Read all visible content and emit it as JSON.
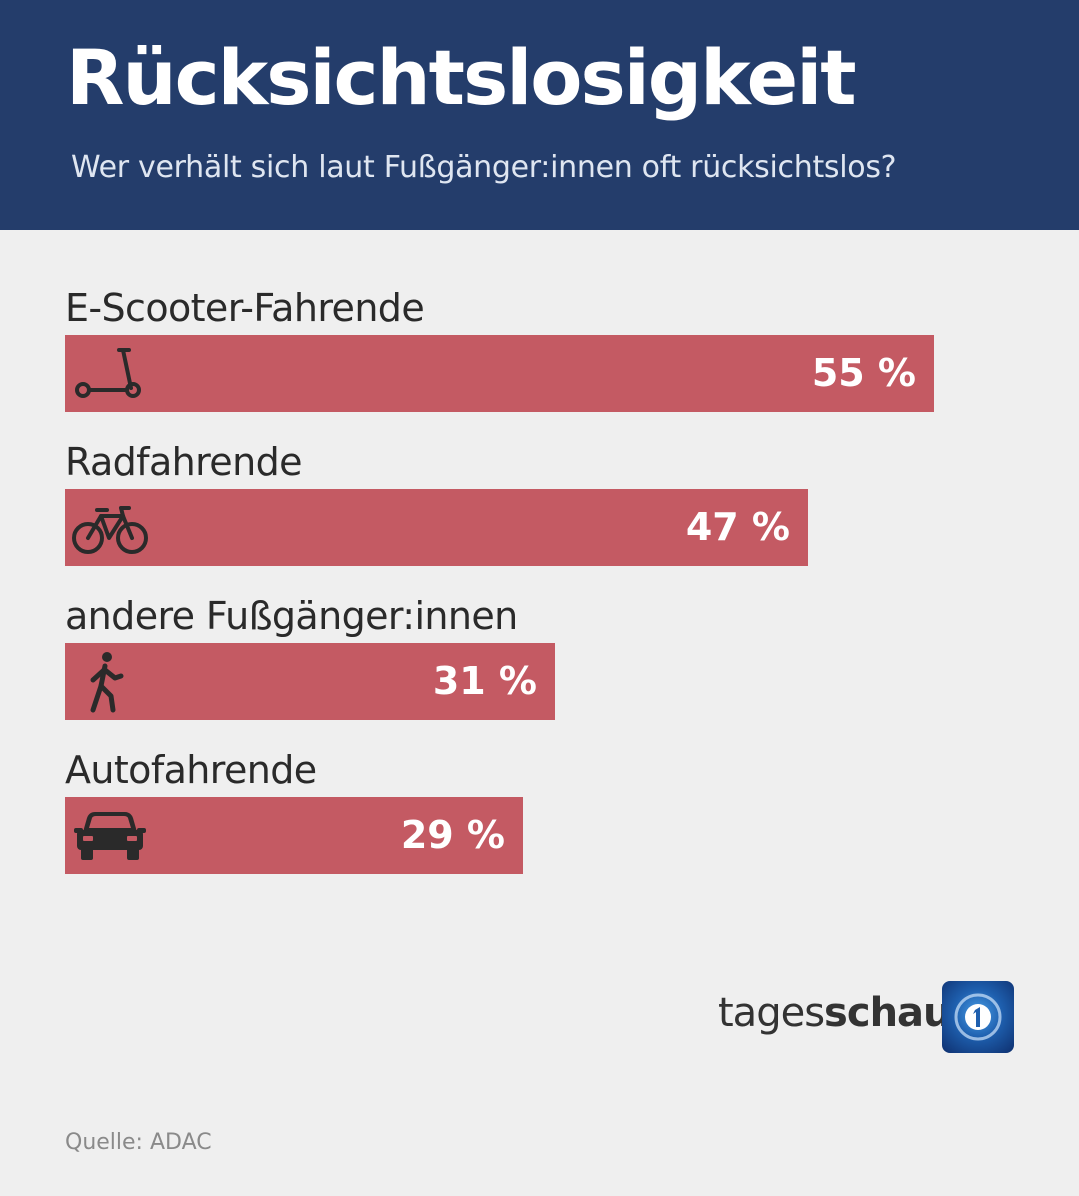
{
  "header": {
    "title": "Rücksichtslosigkeit",
    "subtitle": "Wer verhält sich laut Fußgänger:innen oft rücksichtslos?"
  },
  "colors": {
    "header_bg": "#243d6b",
    "bar": "#c45a63",
    "background": "#efefef"
  },
  "chart_data": {
    "type": "bar",
    "orientation": "horizontal",
    "title": "Rücksichtslosigkeit",
    "subtitle": "Wer verhält sich laut Fußgänger:innen oft rücksichtslos?",
    "categories": [
      "E-Scooter-Fahrende",
      "Radfahrende",
      "andere Fußgänger:innen",
      "Autofahrende"
    ],
    "values": [
      55,
      47,
      31,
      29
    ],
    "value_labels": [
      "55 %",
      "47 %",
      "31 %",
      "29 %"
    ],
    "icons": [
      "scooter-icon",
      "bicycle-icon",
      "pedestrian-icon",
      "car-icon"
    ],
    "unit": "%",
    "xlim": [
      0,
      55
    ],
    "grid": false
  },
  "brand": {
    "prefix": "tages",
    "suffix": "schau",
    "logo_icon": "ard-one-logo-icon"
  },
  "source": "Quelle: ADAC"
}
